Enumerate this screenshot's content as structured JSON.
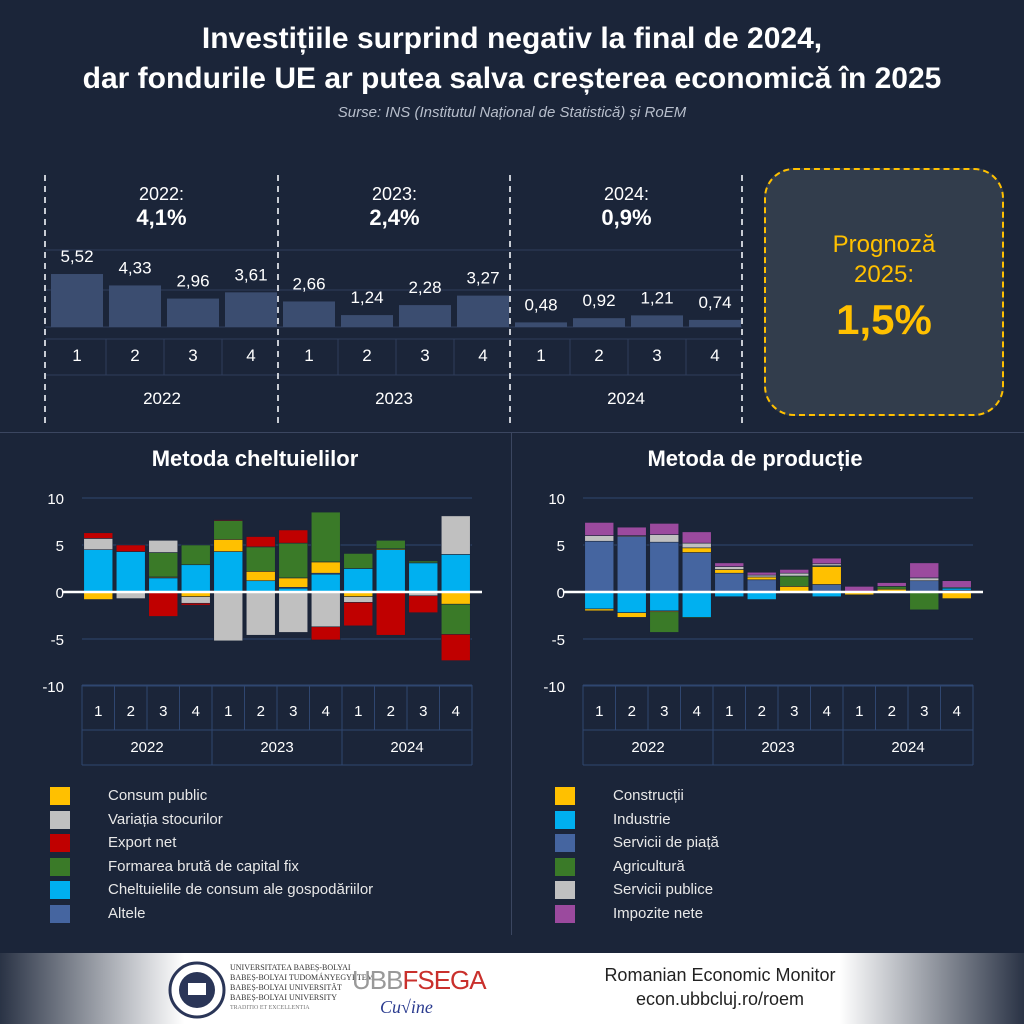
{
  "header": {
    "title_line1": "Investițiile surprind negativ la final de 2024,",
    "title_line2": "dar fondurile UE ar putea salva creșterea economică în 2025",
    "sources": "Surse:  INS (Institutul Național de Statistică) și RoEM"
  },
  "annual": [
    {
      "label": "2022:",
      "value": "4,1%"
    },
    {
      "label": "2023:",
      "value": "2,4%"
    },
    {
      "label": "2024:",
      "value": "0,9%"
    }
  ],
  "forecast": {
    "line1": "Prognoză",
    "line2": "2025:",
    "value": "1,5%"
  },
  "colors": {
    "background": "#1b2539",
    "bar": "#3b4d70",
    "consum_public": "#ffc000",
    "stocuri": "#c0c0c0",
    "export": "#c00000",
    "fbcf": "#3a7a28",
    "gospodarii": "#00b0f0",
    "altele": "#4565a0",
    "constructii": "#ffc000",
    "industrie": "#00b0f0",
    "servicii_piata": "#4565a0",
    "agricultura": "#3a7a28",
    "servicii_publice": "#c0c0c0",
    "impozite": "#9b4a9e",
    "accent": "#ffc000"
  },
  "chart_data": [
    {
      "type": "bar",
      "title": "",
      "categories": [
        "1",
        "2",
        "3",
        "4",
        "1",
        "2",
        "3",
        "4",
        "1",
        "2",
        "3",
        "4"
      ],
      "groups": [
        "2022",
        "2023",
        "2024"
      ],
      "values": [
        5.52,
        4.33,
        2.96,
        3.61,
        2.66,
        1.24,
        2.28,
        3.27,
        0.48,
        0.92,
        1.21,
        0.74
      ],
      "labels": [
        "5,52",
        "4,33",
        "2,96",
        "3,61",
        "2,66",
        "1,24",
        "2,28",
        "3,27",
        "0,48",
        "0,92",
        "1,21",
        "0,74"
      ],
      "grid": true
    },
    {
      "type": "bar",
      "stacked": true,
      "title": "Metoda cheltuielilor",
      "categories": [
        "1",
        "2",
        "3",
        "4",
        "1",
        "2",
        "3",
        "4",
        "1",
        "2",
        "3",
        "4"
      ],
      "groups": [
        "2022",
        "2023",
        "2024"
      ],
      "ylim": [
        -10,
        10
      ],
      "yticks": [
        "10",
        "5",
        "0",
        "-5",
        "-10"
      ],
      "grid": true,
      "legend": "bottom",
      "series": [
        {
          "name": "Cheltuielile de consum ale gospodăriilor",
          "color": "#00b0f0",
          "values": [
            4.5,
            4.3,
            1.5,
            2.9,
            4.3,
            1.2,
            0.4,
            1.9,
            2.5,
            4.5,
            3.1,
            4.0
          ]
        },
        {
          "name": "Altele",
          "color": "#4565a0",
          "values": [
            0,
            0,
            0,
            0,
            0,
            0,
            0.1,
            0.1,
            0,
            0,
            0,
            0
          ]
        },
        {
          "name": "Consum public",
          "color": "#ffc000",
          "values": [
            -0.8,
            0,
            0.1,
            -0.5,
            1.3,
            1.0,
            1.0,
            1.2,
            -0.5,
            0.1,
            0,
            -1.3
          ]
        },
        {
          "name": "Formarea brută de capital fix",
          "color": "#3a7a28",
          "values": [
            0,
            0,
            2.6,
            2.1,
            2.0,
            2.6,
            3.7,
            5.3,
            1.6,
            0.9,
            0.2,
            -3.2
          ]
        },
        {
          "name": "Variația stocurilor",
          "color": "#c0c0c0",
          "values": [
            1.2,
            -0.7,
            1.3,
            -0.7,
            -5.2,
            -4.6,
            -4.3,
            -3.7,
            -0.6,
            0,
            -0.4,
            4.1
          ]
        },
        {
          "name": "Export net",
          "color": "#c00000",
          "values": [
            0.6,
            0.7,
            -2.6,
            -0.2,
            0.1,
            1.1,
            1.4,
            -1.4,
            -2.5,
            -4.6,
            -1.8,
            -2.8
          ]
        }
      ]
    },
    {
      "type": "bar",
      "stacked": true,
      "title": "Metoda de producție",
      "categories": [
        "1",
        "2",
        "3",
        "4",
        "1",
        "2",
        "3",
        "4",
        "1",
        "2",
        "3",
        "4"
      ],
      "groups": [
        "2022",
        "2023",
        "2024"
      ],
      "ylim": [
        -10,
        10
      ],
      "yticks": [
        "10",
        "5",
        "0",
        "-5",
        "-10"
      ],
      "grid": true,
      "legend": "bottom",
      "series": [
        {
          "name": "Servicii de piață",
          "color": "#4565a0",
          "values": [
            5.4,
            5.9,
            5.3,
            4.2,
            2.0,
            1.3,
            0,
            0.8,
            0,
            0,
            1.2,
            0.2
          ]
        },
        {
          "name": "Industrie",
          "color": "#00b0f0",
          "values": [
            -1.8,
            -2.2,
            -2.0,
            -2.7,
            -0.5,
            -0.8,
            0,
            -0.5,
            0,
            0,
            0,
            0.2
          ]
        },
        {
          "name": "Construcții",
          "color": "#ffc000",
          "values": [
            -0.2,
            -0.5,
            -0.1,
            0.5,
            0.4,
            0.3,
            0.6,
            1.9,
            -0.3,
            0.3,
            0,
            -0.7
          ]
        },
        {
          "name": "Agricultură",
          "color": "#3a7a28",
          "values": [
            0,
            0,
            -2.2,
            -0.1,
            0,
            0,
            1.1,
            0.1,
            0,
            0.3,
            -1.9,
            0
          ]
        },
        {
          "name": "Servicii publice",
          "color": "#c0c0c0",
          "values": [
            0.6,
            0.1,
            0.8,
            0.5,
            0.3,
            0.2,
            0.3,
            0.2,
            0,
            0,
            0.3,
            0.1
          ]
        },
        {
          "name": "Impozite nete",
          "color": "#9b4a9e",
          "values": [
            1.4,
            0.9,
            1.2,
            1.2,
            0.4,
            0.3,
            0.4,
            0.6,
            0.6,
            0.4,
            1.6,
            0.7
          ]
        }
      ]
    }
  ],
  "footer": {
    "university": [
      "UNIVERSITATEA BABEȘ-BOLYAI",
      "BABEȘ-BOLYAI TUDOMÁNYEGYETEM",
      "BABEȘ-BOLYAI UNIVERSITÄT",
      "BABEȘ-BOLYAI UNIVERSITY"
    ],
    "motto": "TRADITIO ET EXCELLENTIA",
    "logo2": "UBBFSEGA",
    "monitor": "Romanian Economic Monitor",
    "url": "econ.ubbcluj.ro/roem"
  }
}
